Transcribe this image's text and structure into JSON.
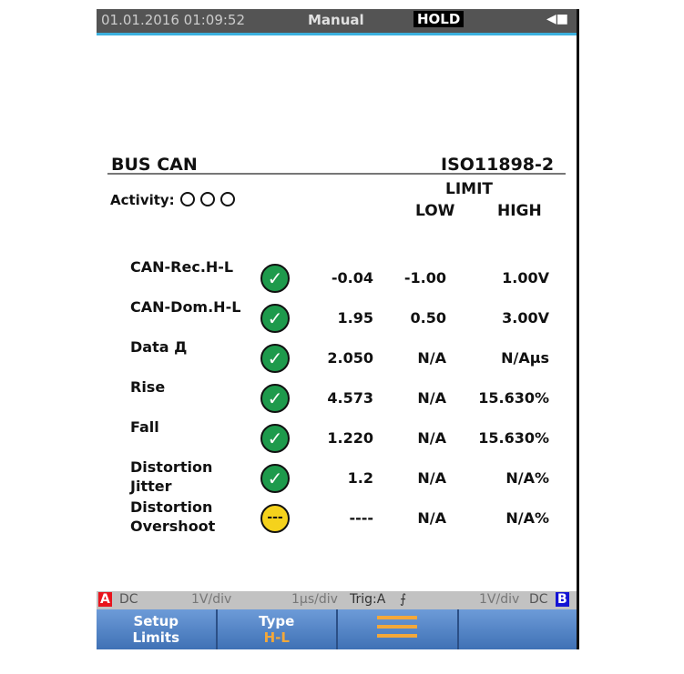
{
  "header": {
    "datetime": "01.01.2016 01:09:52",
    "mode": "Manual",
    "hold": "HOLD",
    "power_icon": "plug-icon"
  },
  "main": {
    "title": "BUS CAN",
    "standard": "ISO11898-2",
    "activity_label": "Activity:",
    "limit_label": "LIMIT",
    "low_label": "LOW",
    "high_label": "HIGH",
    "rows": [
      {
        "name": "CAN-Rec.H-L",
        "status": "pass",
        "value": "-0.04",
        "low": "-1.00",
        "high": "1.00",
        "unit": "V"
      },
      {
        "name": "CAN-Dom.H-L",
        "status": "pass",
        "value": "1.95",
        "low": "0.50",
        "high": "3.00",
        "unit": "V"
      },
      {
        "name": "Data Д",
        "status": "pass",
        "value": "2.050",
        "low": "N/A",
        "high": "N/A",
        "unit": "µs"
      },
      {
        "name": "Rise",
        "status": "pass",
        "value": "4.573",
        "low": "N/A",
        "high": "15.630",
        "unit": "%"
      },
      {
        "name": "Fall",
        "status": "pass",
        "value": "1.220",
        "low": "N/A",
        "high": "15.630",
        "unit": "%"
      },
      {
        "name": "Distortion Jitter",
        "status": "pass",
        "value": "1.2",
        "low": "N/A",
        "high": "N/A",
        "unit": "%"
      },
      {
        "name": "Distortion Overshoot",
        "status": "unknown",
        "value": "----",
        "low": "N/A",
        "high": "N/A",
        "unit": "%",
        "status_text": "---"
      }
    ]
  },
  "status_bar": {
    "ch_a": "A",
    "a_coupling": "DC",
    "a_scale": "1V/div",
    "timebase": "1µs/div",
    "trigger": "Trig:A",
    "trig_slope": "⨍",
    "b_scale": "1V/div",
    "b_coupling": "DC",
    "ch_b": "B",
    "ch_a_color": "#e8141c",
    "ch_b_color": "#1414d4"
  },
  "softkeys": [
    {
      "line1": "Setup",
      "line2": "Limits"
    },
    {
      "line1": "Type",
      "line2": "H-L"
    },
    {
      "icon": "menu-icon"
    },
    {
      "label": ""
    }
  ]
}
